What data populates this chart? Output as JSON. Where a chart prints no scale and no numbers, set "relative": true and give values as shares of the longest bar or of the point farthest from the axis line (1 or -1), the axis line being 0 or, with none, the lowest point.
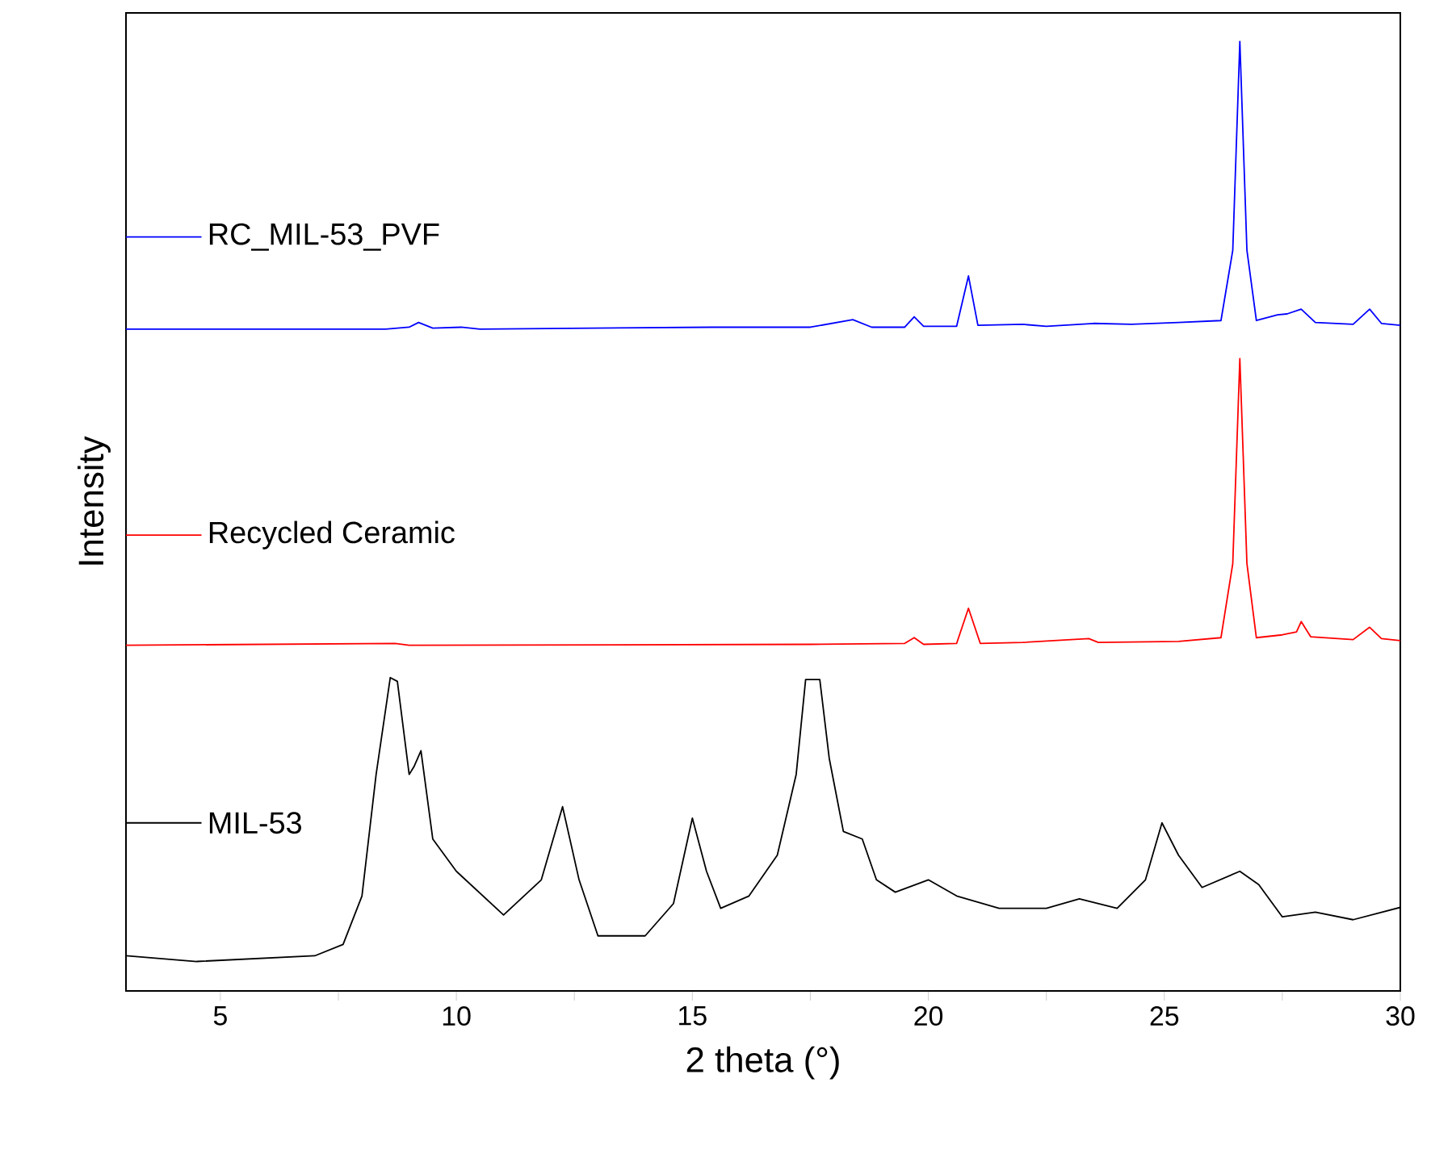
{
  "chart_data": {
    "type": "line",
    "xlabel": "2 theta (°)",
    "ylabel": "Intensity",
    "relative": true,
    "legend": "left",
    "xlim": [
      3,
      30
    ],
    "xticks": [
      {
        "value": 5,
        "label": "5"
      },
      {
        "value": 7.5,
        "label": null
      },
      {
        "value": 10,
        "label": "10"
      },
      {
        "value": 12.5,
        "label": null
      },
      {
        "value": 15,
        "label": "15"
      },
      {
        "value": 17.5,
        "label": null
      },
      {
        "value": 20,
        "label": "20"
      },
      {
        "value": 22.5,
        "label": null
      },
      {
        "value": 25,
        "label": "25"
      },
      {
        "value": 27.5,
        "label": null
      },
      {
        "value": 30,
        "label": "30"
      }
    ],
    "series": [
      {
        "name": "MIL-53",
        "color": "#000000",
        "x": [
          3,
          4.5,
          7,
          7.6,
          8.0,
          8.3,
          8.6,
          8.75,
          9.0,
          9.1,
          9.25,
          9.5,
          10,
          11,
          11.8,
          12.25,
          12.6,
          13.0,
          14.0,
          14.6,
          15.0,
          15.3,
          15.6,
          16.2,
          16.8,
          17.2,
          17.4,
          17.7,
          17.9,
          18.2,
          18.6,
          18.9,
          19.3,
          20.0,
          20.6,
          21.5,
          22.5,
          23.2,
          24.0,
          24.6,
          24.95,
          25.3,
          25.8,
          26.6,
          27.0,
          27.5,
          28.2,
          29,
          30
        ],
        "values": [
          0.037,
          0.031,
          0.037,
          0.049,
          0.1,
          0.228,
          0.33,
          0.326,
          0.228,
          0.236,
          0.253,
          0.16,
          0.126,
          0.08,
          0.117,
          0.194,
          0.117,
          0.058,
          0.058,
          0.092,
          0.182,
          0.126,
          0.087,
          0.1,
          0.143,
          0.228,
          0.328,
          0.328,
          0.245,
          0.168,
          0.16,
          0.117,
          0.104,
          0.117,
          0.1,
          0.087,
          0.087,
          0.097,
          0.087,
          0.117,
          0.177,
          0.143,
          0.109,
          0.126,
          0.112,
          0.078,
          0.083,
          0.075,
          0.088
        ]
      },
      {
        "name": "Recycled Ceramic",
        "color": "#ff0000",
        "x": [
          3,
          8.7,
          9,
          17.5,
          19.5,
          19.7,
          19.9,
          20.6,
          20.85,
          21.1,
          22.0,
          23.4,
          23.6,
          25.3,
          26.2,
          26.45,
          26.6,
          26.75,
          26.95,
          27.5,
          27.8,
          27.9,
          28.1,
          29.0,
          29.35,
          29.6,
          30
        ],
        "values": [
          0.364,
          0.366,
          0.364,
          0.365,
          0.366,
          0.372,
          0.365,
          0.366,
          0.403,
          0.366,
          0.367,
          0.371,
          0.367,
          0.368,
          0.372,
          0.45,
          0.666,
          0.45,
          0.372,
          0.375,
          0.378,
          0.389,
          0.373,
          0.37,
          0.383,
          0.371,
          0.369
        ]
      },
      {
        "name": "RC_MIL-53_PVF",
        "color": "#0000ff",
        "x": [
          3,
          8.5,
          9.0,
          9.2,
          9.5,
          10.1,
          10.5,
          15.4,
          17.5,
          18.4,
          18.8,
          19.5,
          19.7,
          19.9,
          20.6,
          20.85,
          21.05,
          22.0,
          22.5,
          23.5,
          24.3,
          25.3,
          26.2,
          26.45,
          26.6,
          26.75,
          26.95,
          27.4,
          27.6,
          27.9,
          28.2,
          29.0,
          29.35,
          29.6,
          30
        ],
        "values": [
          0.697,
          0.697,
          0.699,
          0.704,
          0.698,
          0.699,
          0.697,
          0.699,
          0.699,
          0.707,
          0.699,
          0.699,
          0.71,
          0.7,
          0.7,
          0.753,
          0.701,
          0.702,
          0.7,
          0.703,
          0.702,
          0.704,
          0.706,
          0.78,
          1,
          0.78,
          0.706,
          0.712,
          0.713,
          0.718,
          0.704,
          0.702,
          0.718,
          0.703,
          0.701
        ]
      }
    ]
  }
}
